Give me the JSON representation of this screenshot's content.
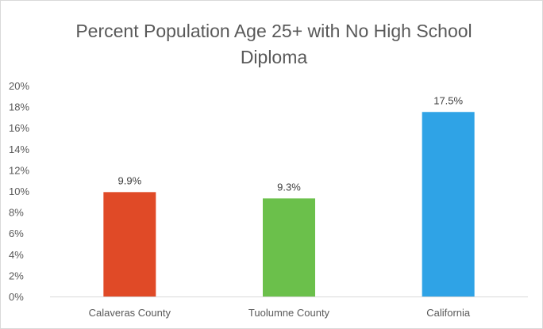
{
  "chart_data": {
    "type": "bar",
    "title_lines": [
      "Percent Population Age 25+ with No High School",
      "Diploma"
    ],
    "categories": [
      "Calaveras County",
      "Tuolumne County",
      "California"
    ],
    "values": [
      9.9,
      9.3,
      17.5
    ],
    "data_labels": [
      "9.9%",
      "9.3%",
      "17.5%"
    ],
    "colors": [
      "#e04a27",
      "#6bc04b",
      "#2fa3e6"
    ],
    "ylim": [
      0,
      20
    ],
    "y_ticks": [
      0,
      2,
      4,
      6,
      8,
      10,
      12,
      14,
      16,
      18,
      20
    ],
    "y_tick_labels": [
      "0%",
      "2%",
      "4%",
      "6%",
      "8%",
      "10%",
      "12%",
      "14%",
      "16%",
      "18%",
      "20%"
    ],
    "grid": false,
    "legend": "none"
  }
}
